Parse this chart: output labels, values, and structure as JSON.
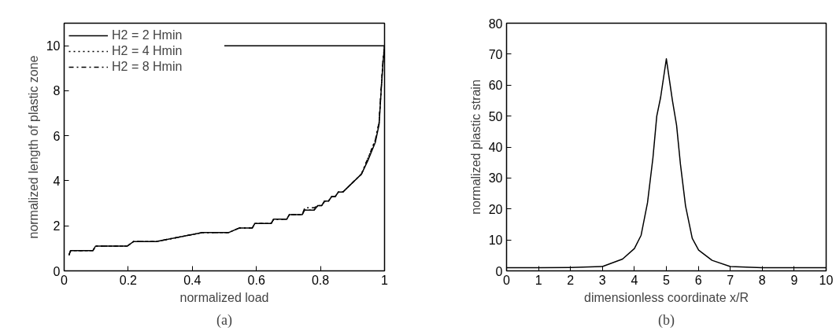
{
  "chart_data": [
    {
      "type": "line",
      "xlabel": "normalized load",
      "ylabel": "normalized length of plastic zone",
      "annotations": [
        "(a)"
      ],
      "xlim": [
        0,
        1
      ],
      "ylim": [
        0,
        11
      ],
      "xticks": [
        0,
        0.2,
        0.4,
        0.6,
        0.8,
        1
      ],
      "yticks": [
        0,
        2,
        4,
        6,
        8,
        10
      ],
      "grid": false,
      "legend": "top left",
      "marker": "none",
      "series": [
        {
          "name": "H2 = 2 Hmin",
          "color": "#000000",
          "line_style": "solid",
          "x": [
            0.015,
            0.02,
            0.09,
            0.098,
            0.197,
            0.216,
            0.287,
            0.431,
            0.513,
            0.546,
            0.587,
            0.595,
            0.646,
            0.654,
            0.695,
            0.703,
            0.743,
            0.751,
            0.78,
            0.792,
            0.804,
            0.813,
            0.825,
            0.835,
            0.846,
            0.856,
            0.87,
            0.928,
            0.948,
            0.971,
            0.983,
            0.989,
            0.995,
            1,
            0.5
          ],
          "values": [
            0.7,
            0.9,
            0.9,
            1.1,
            1.1,
            1.3,
            1.3,
            1.7,
            1.7,
            1.9,
            1.9,
            2.1,
            2.1,
            2.3,
            2.3,
            2.5,
            2.5,
            2.7,
            2.7,
            2.9,
            2.9,
            3.1,
            3.1,
            3.3,
            3.3,
            3.5,
            3.5,
            4.3,
            4.9,
            5.7,
            6.5,
            7.9,
            9.2,
            10,
            10
          ]
        },
        {
          "name": "H2 = 4 Hmin",
          "color": "#000000",
          "line_style": "dotted",
          "x": [
            0.015,
            0.02,
            0.09,
            0.098,
            0.197,
            0.216,
            0.287,
            0.431,
            0.513,
            0.546,
            0.587,
            0.595,
            0.646,
            0.654,
            0.695,
            0.703,
            0.743,
            0.751,
            0.78,
            0.792,
            0.804,
            0.813,
            0.825,
            0.835,
            0.846,
            0.856,
            0.87,
            0.928,
            0.948,
            0.971,
            0.983,
            0.989,
            0.995,
            1
          ],
          "values": [
            0.7,
            0.9,
            0.9,
            1.1,
            1.1,
            1.3,
            1.3,
            1.7,
            1.7,
            1.9,
            1.9,
            2.1,
            2.1,
            2.3,
            2.3,
            2.5,
            2.5,
            2.7,
            2.7,
            2.9,
            2.9,
            3.1,
            3.1,
            3.3,
            3.3,
            3.5,
            3.5,
            4.3,
            5.0,
            5.8,
            6.6,
            8.0,
            9.3,
            10
          ]
        },
        {
          "name": "H2 = 8 Hmin",
          "color": "#000000",
          "line_style": "dashed",
          "x": [
            0.015,
            0.02,
            0.09,
            0.098,
            0.197,
            0.216,
            0.287,
            0.431,
            0.513,
            0.546,
            0.587,
            0.595,
            0.646,
            0.654,
            0.695,
            0.703,
            0.743,
            0.751,
            0.78,
            0.792,
            0.804,
            0.813,
            0.825,
            0.835,
            0.846,
            0.856,
            0.87,
            0.928,
            0.948,
            0.971,
            0.983,
            0.989,
            0.995,
            1
          ],
          "values": [
            0.7,
            0.9,
            0.9,
            1.1,
            1.1,
            1.3,
            1.3,
            1.7,
            1.7,
            1.9,
            1.9,
            2.1,
            2.1,
            2.3,
            2.3,
            2.5,
            2.5,
            2.8,
            2.8,
            2.9,
            2.9,
            3.1,
            3.1,
            3.3,
            3.3,
            3.5,
            3.5,
            4.3,
            5.0,
            5.8,
            6.6,
            8.0,
            9.3,
            10
          ]
        }
      ]
    },
    {
      "type": "line",
      "xlabel": "dimensionless coordinate x/R",
      "ylabel": "normalized plastic strain",
      "annotations": [
        "(b)"
      ],
      "xlim": [
        0,
        10
      ],
      "ylim": [
        0,
        80
      ],
      "xticks": [
        0,
        1,
        2,
        3,
        4,
        5,
        6,
        7,
        8,
        9,
        10
      ],
      "yticks": [
        0,
        10,
        20,
        30,
        40,
        50,
        60,
        70,
        80
      ],
      "grid": false,
      "legend": false,
      "marker": "none",
      "series": [
        {
          "color": "#000000",
          "line_style": "solid",
          "x": [
            0,
            1,
            2,
            3,
            3.63,
            4.0,
            4.21,
            4.41,
            4.58,
            4.7,
            4.82,
            5.0,
            5.19,
            5.32,
            5.44,
            5.6,
            5.81,
            6.01,
            6.43,
            7.0,
            8.0,
            9,
            10
          ],
          "values": [
            1,
            1,
            1.1,
            1.4,
            3.8,
            7.2,
            11.5,
            22,
            36.5,
            50,
            56,
            68.5,
            55,
            47,
            34.5,
            21,
            10.5,
            6.7,
            3.4,
            1.4,
            1,
            1,
            1
          ]
        }
      ]
    }
  ]
}
